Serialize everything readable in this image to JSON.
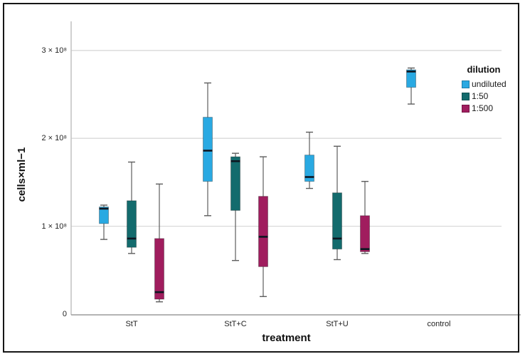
{
  "chart_data": {
    "type": "boxplot",
    "title": "",
    "xlabel": "treatment",
    "ylabel": "cells×ml−1",
    "values_unit": "×10⁸ cells×ml−1",
    "ylim": [
      0,
      3.35
    ],
    "grid": true,
    "legend": {
      "title": "dilution",
      "position": "right",
      "items": [
        {
          "label": "undiluted",
          "color": "#29a9e2"
        },
        {
          "label": "1:50",
          "color": "#136b6d"
        },
        {
          "label": "1:500",
          "color": "#a01d5e"
        }
      ]
    },
    "y_ticks": [
      {
        "value": 0,
        "label": "0"
      },
      {
        "value": 1,
        "label": "1 × 10⁸"
      },
      {
        "value": 2,
        "label": "2 × 10⁸"
      },
      {
        "value": 3,
        "label": "3 × 10⁸"
      }
    ],
    "groups": [
      {
        "label": "StT",
        "boxes": [
          {
            "dilution": "undiluted",
            "min": 0.85,
            "q1": 1.03,
            "median": 1.2,
            "q3": 1.22,
            "max": 1.24
          },
          {
            "dilution": "1:50",
            "min": 0.69,
            "q1": 0.76,
            "median": 0.86,
            "q3": 1.29,
            "max": 1.73
          },
          {
            "dilution": "1:500",
            "min": 0.14,
            "q1": 0.17,
            "median": 0.25,
            "q3": 0.86,
            "max": 1.48
          }
        ]
      },
      {
        "label": "StT+C",
        "boxes": [
          {
            "dilution": "undiluted",
            "min": 1.12,
            "q1": 1.51,
            "median": 1.86,
            "q3": 2.24,
            "max": 2.63
          },
          {
            "dilution": "1:50",
            "min": 0.61,
            "q1": 1.18,
            "median": 1.74,
            "q3": 1.79,
            "max": 1.83
          },
          {
            "dilution": "1:500",
            "min": 0.2,
            "q1": 0.54,
            "median": 0.88,
            "q3": 1.34,
            "max": 1.79
          }
        ]
      },
      {
        "label": "StT+U",
        "boxes": [
          {
            "dilution": "undiluted",
            "min": 1.43,
            "q1": 1.51,
            "median": 1.56,
            "q3": 1.81,
            "max": 2.07
          },
          {
            "dilution": "1:50",
            "min": 0.62,
            "q1": 0.74,
            "median": 0.86,
            "q3": 1.38,
            "max": 1.91
          },
          {
            "dilution": "1:500",
            "min": 0.69,
            "q1": 0.71,
            "median": 0.74,
            "q3": 1.12,
            "max": 1.51
          }
        ]
      },
      {
        "label": "control",
        "boxes": [
          {
            "dilution": "undiluted",
            "min": 2.39,
            "q1": 2.58,
            "median": 2.76,
            "q3": 2.78,
            "max": 2.8
          }
        ]
      }
    ],
    "colors": {
      "median_line": "#0d1722",
      "whisker": "#5d5d5d",
      "gridline": "#d9d9d9",
      "y_axis_line": "#c4c4c4",
      "x_axis_line": "#9b9b9b",
      "frame": "#161616"
    }
  }
}
